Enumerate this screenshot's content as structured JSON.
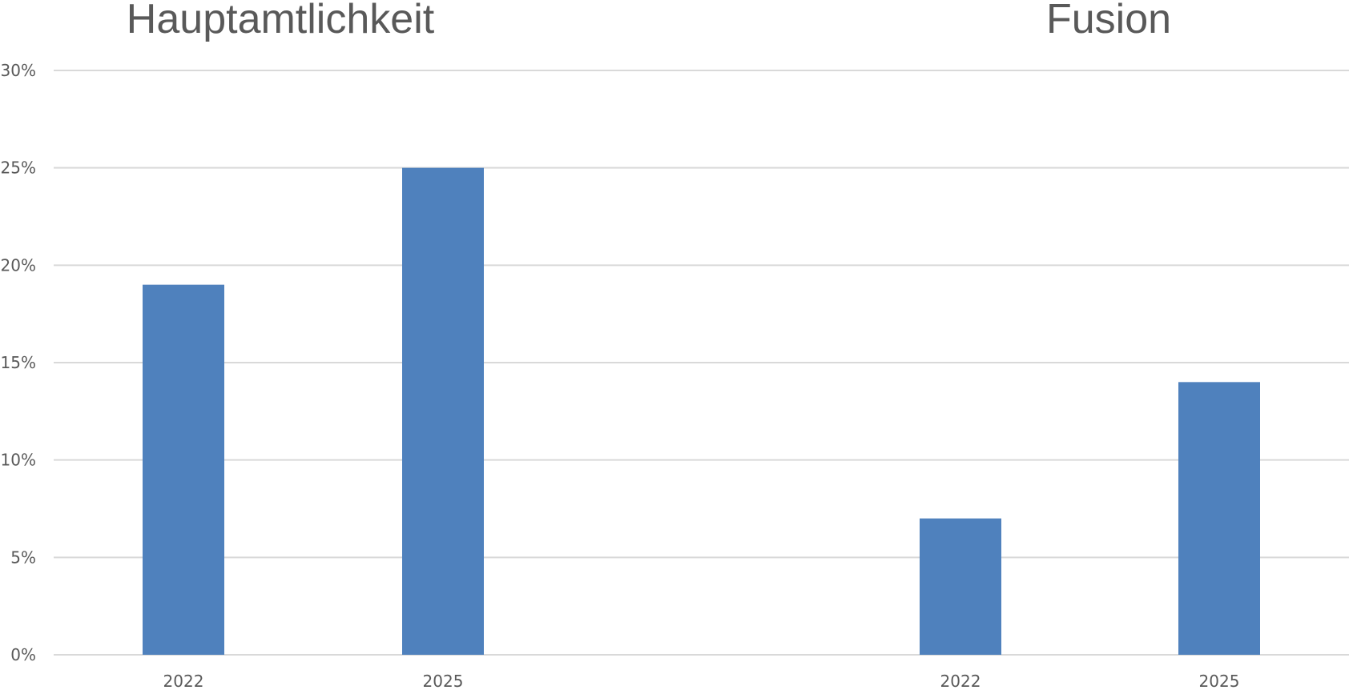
{
  "chart_data": {
    "type": "bar",
    "groups": [
      {
        "title": "Hauptamtlichkeit",
        "categories": [
          "2022",
          "2025"
        ],
        "values": [
          19,
          25
        ]
      },
      {
        "title": "Fusion",
        "categories": [
          "2022",
          "2025"
        ],
        "values": [
          7,
          14
        ]
      }
    ],
    "ylim": [
      0,
      30
    ],
    "yticks": [
      0,
      5,
      10,
      15,
      20,
      25,
      30
    ],
    "ytick_labels": [
      "0%",
      "5%",
      "10%",
      "15%",
      "20%",
      "25%",
      "30%"
    ],
    "value_format": "percent",
    "grid": true,
    "legend": "none",
    "bar_color": "#4F81BD",
    "grid_color": "#D9D9D9",
    "text_color": "#595959"
  }
}
